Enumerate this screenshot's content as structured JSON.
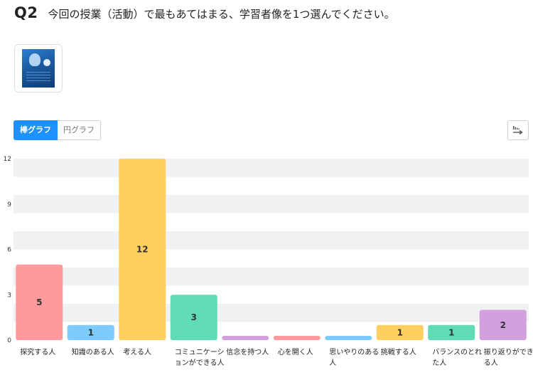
{
  "question": {
    "number": "Q2",
    "text": "今回の授業（活動）で最もあてはまる、学習者像を1つ選んでください。"
  },
  "controls": {
    "bar_tab": "棒グラフ",
    "pie_tab": "円グラフ",
    "export_icon": "export-arrow-icon"
  },
  "chart_data": {
    "type": "bar",
    "categories": [
      "探究する人",
      "知識のある人",
      "考える人",
      "コミュニケーションができる人",
      "信念を持つ人",
      "心を開く人",
      "思いやりのある人",
      "挑戦する人",
      "バランスのとれた人",
      "振り返りができる人"
    ],
    "values": [
      5,
      1,
      12,
      3,
      0,
      0,
      0,
      1,
      1,
      2
    ],
    "colors": [
      "#fe9a9b",
      "#7dcbff",
      "#ffd05f",
      "#5fdbb5",
      "#d1a0dd",
      "#fe9a9b",
      "#7dcbff",
      "#ffd05f",
      "#5fdbb5",
      "#d1a0dd"
    ],
    "yticks": [
      0,
      3,
      6,
      9,
      12
    ],
    "ylim": [
      0,
      12
    ],
    "grid": true,
    "legend": false,
    "title": "",
    "xlabel": "",
    "ylabel": ""
  }
}
